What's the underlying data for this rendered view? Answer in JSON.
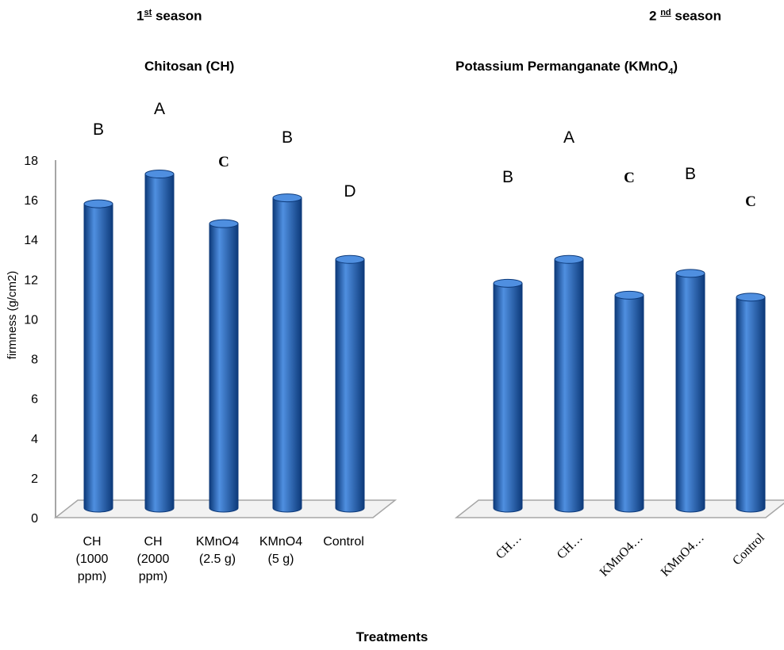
{
  "headers": {
    "season1_num": "1",
    "season1_sup": "st",
    "season1_text": " season",
    "season2_num": "2 ",
    "season2_sup": "nd",
    "season2_text": " season",
    "subtitle1": "Chitosan (CH)",
    "subtitle2_main": "Potassium Permanganate   (KMnO",
    "subtitle2_sub": "4",
    "subtitle2_end": ")",
    "xaxis_title": "Treatments"
  },
  "colors": {
    "bar": "#1f5fb8",
    "bar_dark": "#0d3a7a",
    "bar_light": "#4f8fe0",
    "axis": "#a6a6a6"
  },
  "chart_data": [
    {
      "type": "bar",
      "title": "1st season",
      "ylabel": "firmness (g/cm2)",
      "ylim": [
        0,
        18
      ],
      "yticks": [
        0,
        2,
        4,
        6,
        8,
        10,
        12,
        14,
        16,
        18
      ],
      "categories": [
        [
          "CH",
          "(1000",
          "ppm)"
        ],
        [
          "CH",
          "(2000",
          "ppm)"
        ],
        [
          "KMnO4",
          "(2.5 g)"
        ],
        [
          "KMnO4",
          "(5 g)"
        ],
        [
          "Control"
        ]
      ],
      "values": [
        15.8,
        17.3,
        14.8,
        16.1,
        13.0
      ],
      "letters": [
        "B",
        "A",
        "C",
        "B",
        "D"
      ]
    },
    {
      "type": "bar",
      "title": "2nd season",
      "ylim": [
        0,
        18
      ],
      "categories": [
        "CH…",
        "CH…",
        "KMnO4…",
        "KMnO4…",
        "Control"
      ],
      "values": [
        11.8,
        13.0,
        11.2,
        12.3,
        11.1
      ],
      "letters": [
        "B",
        "A",
        "C",
        "B",
        "C"
      ]
    }
  ]
}
